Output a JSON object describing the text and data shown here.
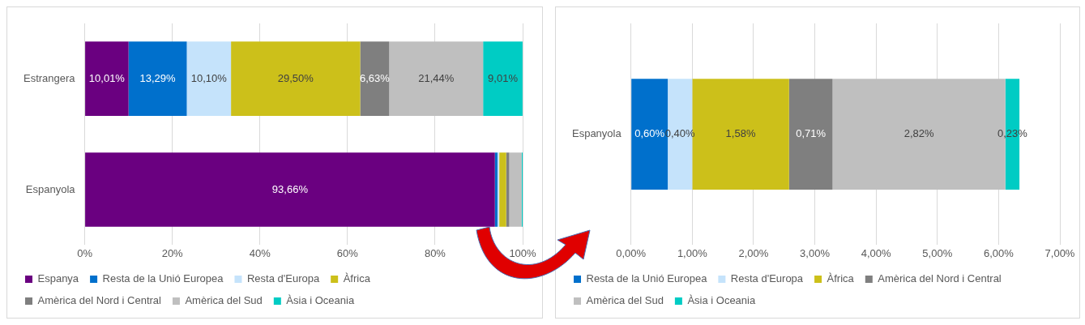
{
  "chart_data": [
    {
      "type": "bar",
      "orientation": "horizontal",
      "stacked": true,
      "categories": [
        "Estrangera",
        "Espanyola"
      ],
      "xlim": [
        0,
        100
      ],
      "xticks": [
        {
          "value": 0,
          "label": "0%"
        },
        {
          "value": 20,
          "label": "20%"
        },
        {
          "value": 40,
          "label": "40%"
        },
        {
          "value": 60,
          "label": "60%"
        },
        {
          "value": 80,
          "label": "80%"
        },
        {
          "value": 100,
          "label": "100%"
        }
      ],
      "grid": "x",
      "legend": "bottom",
      "series": [
        {
          "name": "Espanya",
          "color": "#6a0080",
          "values": [
            10.01,
            93.66
          ],
          "value_labels": [
            "10,01%",
            "93,66%"
          ]
        },
        {
          "name": "Resta de la Unió Europea",
          "color": "#0070cc",
          "values": [
            13.29,
            0.6
          ],
          "value_labels": [
            "13,29%",
            null
          ]
        },
        {
          "name": "Resta d'Europa",
          "color": "#c5e3fb",
          "values": [
            10.1,
            0.4
          ],
          "value_labels": [
            "10,10%",
            null
          ]
        },
        {
          "name": "Àfrica",
          "color": "#ccc01a",
          "values": [
            29.5,
            1.58
          ],
          "value_labels": [
            "29,50%",
            null
          ]
        },
        {
          "name": "Amèrica del Nord i Central",
          "color": "#7f7f7f",
          "values": [
            6.63,
            0.71
          ],
          "value_labels": [
            "6,63%",
            null
          ]
        },
        {
          "name": "Amèrica del Sud",
          "color": "#bfbfbf",
          "values": [
            21.44,
            2.82
          ],
          "value_labels": [
            "21,44%",
            null
          ]
        },
        {
          "name": "Àsia i Oceania",
          "color": "#00ccc4",
          "values": [
            9.01,
            0.23
          ],
          "value_labels": [
            "9,01%",
            null
          ]
        }
      ]
    },
    {
      "type": "bar",
      "orientation": "horizontal",
      "stacked": true,
      "categories": [
        "Espanyola"
      ],
      "xlim": [
        0,
        7
      ],
      "xticks": [
        {
          "value": 0,
          "label": "0,00%"
        },
        {
          "value": 1,
          "label": "1,00%"
        },
        {
          "value": 2,
          "label": "2,00%"
        },
        {
          "value": 3,
          "label": "3,00%"
        },
        {
          "value": 4,
          "label": "4,00%"
        },
        {
          "value": 5,
          "label": "5,00%"
        },
        {
          "value": 6,
          "label": "6,00%"
        },
        {
          "value": 7,
          "label": "7,00%"
        }
      ],
      "grid": "x",
      "legend": "bottom",
      "series": [
        {
          "name": "Resta de la Unió Europea",
          "color": "#0070cc",
          "values": [
            0.6
          ],
          "value_labels": [
            "0,60%"
          ]
        },
        {
          "name": "Resta d'Europa",
          "color": "#c5e3fb",
          "values": [
            0.4
          ],
          "value_labels": [
            "0,40%"
          ]
        },
        {
          "name": "Àfrica",
          "color": "#ccc01a",
          "values": [
            1.58
          ],
          "value_labels": [
            "1,58%"
          ]
        },
        {
          "name": "Amèrica del Nord i Central",
          "color": "#7f7f7f",
          "values": [
            0.71
          ],
          "value_labels": [
            "0,71%"
          ]
        },
        {
          "name": "Amèrica del Sud",
          "color": "#bfbfbf",
          "values": [
            2.82
          ],
          "value_labels": [
            "2,82%"
          ]
        },
        {
          "name": "Àsia i Oceania",
          "color": "#00ccc4",
          "values": [
            0.23
          ],
          "value_labels": [
            "0,23%"
          ]
        }
      ]
    }
  ]
}
